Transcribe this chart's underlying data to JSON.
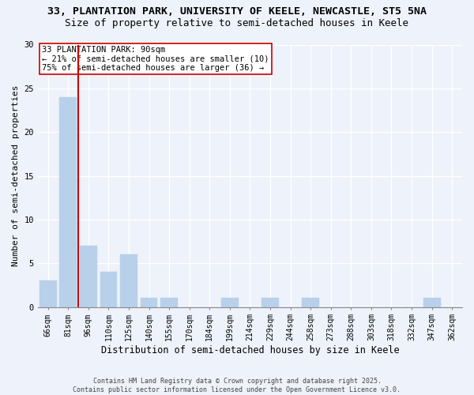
{
  "title1": "33, PLANTATION PARK, UNIVERSITY OF KEELE, NEWCASTLE, ST5 5NA",
  "title2": "Size of property relative to semi-detached houses in Keele",
  "xlabel": "Distribution of semi-detached houses by size in Keele",
  "ylabel": "Number of semi-detached properties",
  "categories": [
    "66sqm",
    "81sqm",
    "96sqm",
    "110sqm",
    "125sqm",
    "140sqm",
    "155sqm",
    "170sqm",
    "184sqm",
    "199sqm",
    "214sqm",
    "229sqm",
    "244sqm",
    "258sqm",
    "273sqm",
    "288sqm",
    "303sqm",
    "318sqm",
    "332sqm",
    "347sqm",
    "362sqm"
  ],
  "values": [
    3,
    24,
    7,
    4,
    6,
    1,
    1,
    0,
    0,
    1,
    0,
    1,
    0,
    1,
    0,
    0,
    0,
    0,
    0,
    1,
    0
  ],
  "bar_color": "#b8d0ea",
  "bar_edgecolor": "#b8d0ea",
  "redline_x": 1.5,
  "annotation_title": "33 PLANTATION PARK: 90sqm",
  "annotation_line2": "← 21% of semi-detached houses are smaller (10)",
  "annotation_line3": "75% of semi-detached houses are larger (36) →",
  "annotation_box_color": "#ffffff",
  "annotation_box_edgecolor": "#cc0000",
  "redline_color": "#cc0000",
  "ylim": [
    0,
    30
  ],
  "yticks": [
    0,
    5,
    10,
    15,
    20,
    25,
    30
  ],
  "footer1": "Contains HM Land Registry data © Crown copyright and database right 2025.",
  "footer2": "Contains public sector information licensed under the Open Government Licence v3.0.",
  "bg_color": "#eef2fa",
  "plot_bg_color": "#eef2fa",
  "grid_color": "#ffffff",
  "title1_fontsize": 9.5,
  "title2_fontsize": 9,
  "tick_fontsize": 7,
  "ylabel_fontsize": 8,
  "xlabel_fontsize": 8.5,
  "annotation_fontsize": 7.5,
  "footer_fontsize": 6
}
